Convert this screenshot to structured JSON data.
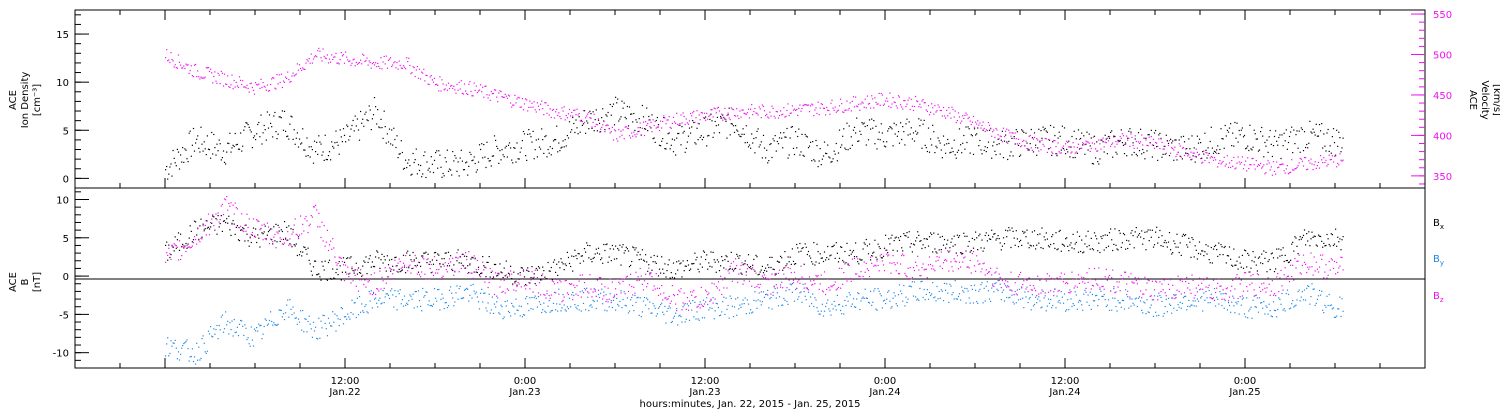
{
  "colors": {
    "black": "#000000",
    "magenta": "#ee11ee",
    "blue": "#1e88e5"
  },
  "chart_data": [
    {
      "type": "scatter",
      "panel": "top",
      "left_axis": {
        "label_lines": [
          "ACE",
          "Ion Density",
          "[cm⁻³]"
        ],
        "range": [
          -1,
          17.5
        ],
        "ticks": [
          0,
          5,
          10,
          15
        ]
      },
      "right_axis": {
        "label_lines": [
          "ACE",
          "Velocity",
          "[km/s]"
        ],
        "range": [
          335,
          555
        ],
        "ticks": [
          350,
          400,
          450,
          500,
          550
        ]
      },
      "series": [
        {
          "name": "",
          "axis": "left",
          "color": "#000000",
          "x": [
            0,
            2,
            4,
            6,
            8,
            10,
            12,
            14,
            16,
            18,
            20,
            22,
            24,
            26,
            28,
            30,
            32,
            34,
            36,
            38,
            40,
            42,
            44,
            46,
            48,
            50,
            52,
            54,
            56,
            58,
            60,
            62,
            64,
            66,
            68,
            70,
            72,
            74,
            76,
            78
          ],
          "y": [
            1,
            4,
            3,
            5,
            6,
            3,
            4,
            7,
            2,
            1.5,
            1.5,
            3,
            3.5,
            4,
            6,
            7,
            6,
            4,
            5,
            6,
            3,
            4,
            2.5,
            5,
            4.5,
            5,
            3.5,
            4,
            3.5,
            4,
            4,
            3,
            4,
            3.5,
            3,
            4,
            4.5,
            3.5,
            4.5,
            4
          ]
        },
        {
          "name": "",
          "axis": "right",
          "color": "#ee11ee",
          "x": [
            0,
            2,
            4,
            6,
            8,
            10,
            12,
            14,
            16,
            18,
            20,
            22,
            24,
            26,
            28,
            30,
            32,
            34,
            36,
            38,
            40,
            42,
            44,
            46,
            48,
            50,
            52,
            54,
            56,
            58,
            60,
            62,
            64,
            66,
            68,
            70,
            72,
            74,
            76,
            78
          ],
          "y": [
            500,
            480,
            470,
            460,
            470,
            500,
            495,
            490,
            490,
            465,
            460,
            450,
            440,
            430,
            425,
            400,
            410,
            420,
            425,
            430,
            430,
            432,
            435,
            440,
            445,
            440,
            430,
            415,
            400,
            390,
            385,
            390,
            395,
            390,
            380,
            370,
            365,
            360,
            365,
            370
          ]
        }
      ]
    },
    {
      "type": "scatter",
      "panel": "bottom",
      "left_axis": {
        "label_lines": [
          "ACE",
          "B",
          "[nT]"
        ],
        "range": [
          -12,
          11.5
        ],
        "ticks": [
          -10,
          -5,
          0,
          5,
          10
        ]
      },
      "legend": [
        {
          "text": "B",
          "sub": "x",
          "color": "#000000"
        },
        {
          "text": "B",
          "sub": "y",
          "color": "#1e88e5"
        },
        {
          "text": "B",
          "sub": "z",
          "color": "#ee11ee"
        }
      ],
      "series": [
        {
          "name": "Bx",
          "color": "#000000",
          "x": [
            0,
            2,
            4,
            6,
            8,
            10,
            12,
            14,
            16,
            18,
            20,
            22,
            24,
            26,
            28,
            30,
            32,
            34,
            36,
            38,
            40,
            42,
            44,
            46,
            48,
            50,
            52,
            54,
            56,
            58,
            60,
            62,
            64,
            66,
            68,
            70,
            72,
            74,
            76,
            78
          ],
          "y": [
            3,
            6,
            7,
            5,
            6,
            1,
            1,
            2,
            2,
            2,
            2,
            1,
            0,
            1,
            3,
            3,
            2,
            1,
            2,
            2,
            1,
            3,
            3,
            3,
            4,
            4.5,
            4.5,
            4.5,
            5,
            5,
            4.5,
            4.5,
            5,
            5,
            4,
            3,
            2,
            2,
            5,
            5
          ]
        },
        {
          "name": "By",
          "color": "#1e88e5",
          "x": [
            0,
            2,
            4,
            6,
            8,
            10,
            12,
            14,
            16,
            18,
            20,
            22,
            24,
            26,
            28,
            30,
            32,
            34,
            36,
            38,
            40,
            42,
            44,
            46,
            48,
            50,
            52,
            54,
            56,
            58,
            60,
            62,
            64,
            66,
            68,
            70,
            72,
            74,
            76,
            78
          ],
          "y": [
            -9,
            -10,
            -6,
            -8,
            -4,
            -7,
            -5,
            -3,
            -3,
            -3,
            -2,
            -4,
            -4,
            -3,
            -3,
            -3,
            -4,
            -5,
            -4,
            -4,
            -3,
            -2,
            -4,
            -3,
            -3,
            -2,
            -2,
            -2,
            -2,
            -3,
            -3,
            -3,
            -3,
            -4,
            -3,
            -3,
            -4,
            -4,
            -2,
            -4
          ]
        },
        {
          "name": "Bz",
          "color": "#ee11ee",
          "x": [
            0,
            2,
            4,
            6,
            8,
            10,
            12,
            14,
            16,
            18,
            20,
            22,
            24,
            26,
            28,
            30,
            32,
            34,
            36,
            38,
            40,
            42,
            44,
            46,
            48,
            50,
            52,
            54,
            56,
            58,
            60,
            62,
            64,
            66,
            68,
            70,
            72,
            74,
            76,
            78
          ],
          "y": [
            2,
            5,
            9,
            6,
            5,
            8,
            0,
            -1,
            2,
            1,
            2,
            -1,
            0,
            -2,
            -1,
            -2,
            0,
            -3,
            -3,
            1,
            -1,
            0,
            -1,
            1,
            2,
            1,
            2,
            2,
            -1,
            -1,
            -1,
            0,
            -1,
            -2,
            -1,
            -2,
            -1,
            -1,
            2,
            1
          ]
        }
      ]
    }
  ],
  "x_axis": {
    "range_hours": [
      -6,
      84
    ],
    "tick_labels": [
      {
        "time": "12:00",
        "date": "Jan.22",
        "hours": 12
      },
      {
        "time": "0:00",
        "date": "Jan.23",
        "hours": 24
      },
      {
        "time": "12:00",
        "date": "Jan.23",
        "hours": 36
      },
      {
        "time": "0:00",
        "date": "Jan.24",
        "hours": 48
      },
      {
        "time": "12:00",
        "date": "Jan.24",
        "hours": 60
      },
      {
        "time": "0:00",
        "date": "Jan.25",
        "hours": 72
      }
    ],
    "label": "hours:minutes, Jan. 22, 2015 - Jan. 25, 2015"
  }
}
